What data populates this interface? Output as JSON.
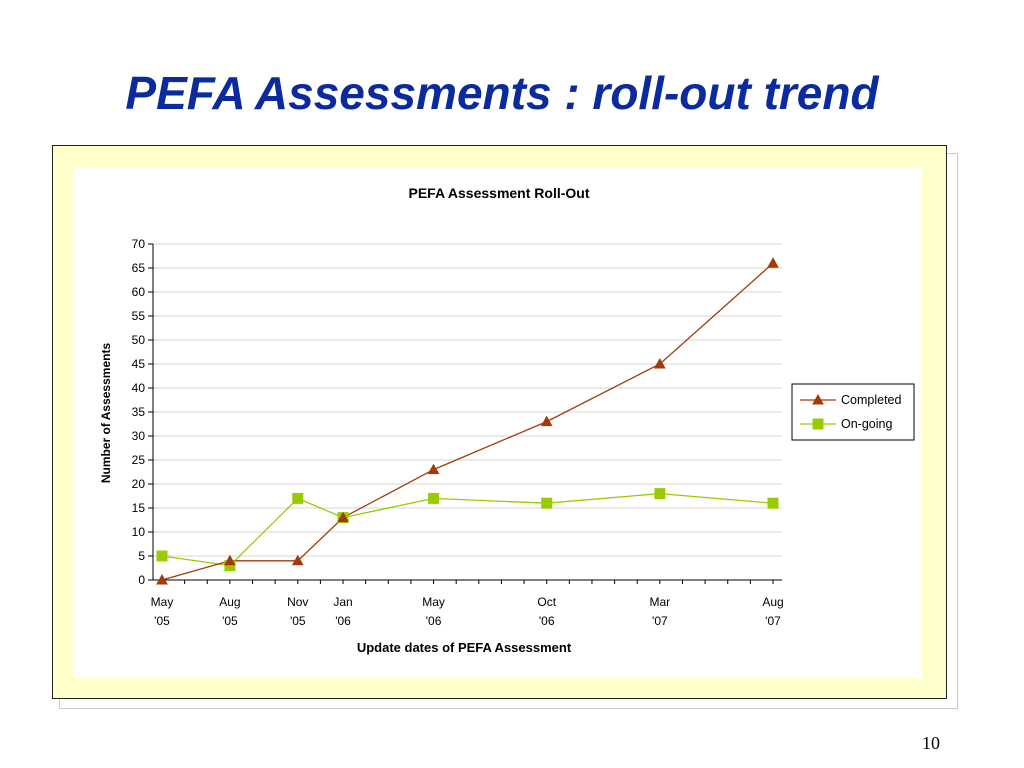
{
  "slide": {
    "title": "PEFA Assessments : roll-out trend",
    "page_number": "10"
  },
  "colors": {
    "title": "#0b2a9e",
    "frame_background": "#ffffcc",
    "completed": "#a33a0b",
    "on_going": "#99cc00"
  },
  "chart_data": {
    "type": "line",
    "title": "PEFA Assessment Roll-Out",
    "xlabel": "Update dates of PEFA Assessment",
    "ylabel": "Number of Assessments",
    "ylim": [
      0,
      70
    ],
    "yticks": [
      0,
      5,
      10,
      15,
      20,
      25,
      30,
      35,
      40,
      45,
      50,
      55,
      60,
      65,
      70
    ],
    "x": [
      "2005-05",
      "2005-08",
      "2005-11",
      "2006-01",
      "2006-05",
      "2006-10",
      "2007-03",
      "2007-08"
    ],
    "x_tick_labels": [
      [
        "May",
        "'05"
      ],
      [
        "Aug",
        "'05"
      ],
      [
        "Nov",
        "'05"
      ],
      [
        "Jan",
        "'06"
      ],
      [
        "May",
        "'06"
      ],
      [
        "Oct",
        "'06"
      ],
      [
        "Mar",
        "'07"
      ],
      [
        "Aug",
        "'07"
      ]
    ],
    "x_range": [
      "2005-05",
      "2007-08"
    ],
    "grid": "horizontal",
    "legend_position": "right",
    "series": [
      {
        "name": "Completed",
        "marker": "triangle",
        "color": "#a33a0b",
        "values": [
          0,
          4,
          4,
          13,
          23,
          33,
          45,
          66
        ]
      },
      {
        "name": "On-going",
        "marker": "square",
        "color": "#99cc00",
        "values": [
          5,
          3,
          17,
          13,
          17,
          16,
          18,
          16
        ]
      }
    ]
  }
}
